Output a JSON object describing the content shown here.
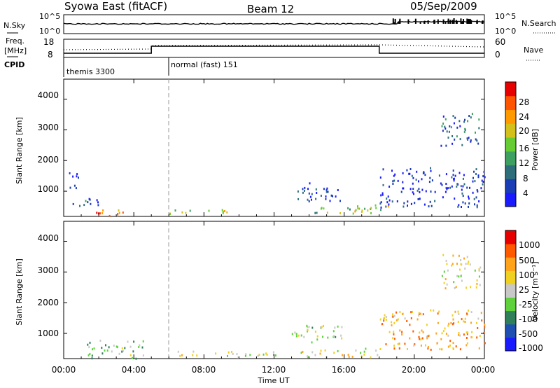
{
  "header": {
    "title": "Syowa East (fitACF)",
    "beam": "Beam 12",
    "date": "05/Sep/2009"
  },
  "params": {
    "nsky_label": "N.Sky",
    "nsky_ticks": [
      "10^5",
      "10^0"
    ],
    "nsearch_label": "N.Search",
    "nsearch_ticks": [
      "10^5",
      "10^0"
    ],
    "freq_label": "Freq.",
    "freq_unit": "[MHz]",
    "freq_ticks": [
      "18",
      "8"
    ],
    "nave_label": "Nave",
    "nave_ticks": [
      "60",
      "0"
    ],
    "cpid_label": "CPID",
    "cpid_segments": [
      {
        "name": "themis 3300",
        "start_h": 0,
        "end_h": 6
      },
      {
        "name": "normal (fast) 151",
        "start_h": 6,
        "end_h": 24
      }
    ]
  },
  "panels": {
    "ylabel": "Slant Range [km]",
    "yticks": [
      "4000",
      "3000",
      "2000",
      "1000"
    ],
    "xlabel": "Time UT",
    "xticks": [
      "00:00",
      "04:00",
      "08:00",
      "12:00",
      "16:00",
      "20:00",
      "00:00"
    ],
    "power_title": "Power [dB]",
    "power_ticks": [
      "28",
      "24",
      "20",
      "16",
      "12",
      "8",
      "4"
    ],
    "velocity_title": "Velocity [m s⁻¹]",
    "velocity_ticks": [
      "1000",
      "500",
      "100",
      "25",
      "-25",
      "-100",
      "-500",
      "-1000"
    ]
  },
  "colors": {
    "power_scale": [
      "#1a1aff",
      "#1a3cb4",
      "#2e6e7a",
      "#3ea060",
      "#66cc33",
      "#d4c01a",
      "#ff9900",
      "#ff5500",
      "#e60000"
    ],
    "velocity_scale": [
      "#1a1aff",
      "#1f4fb0",
      "#2e7f5a",
      "#5fd13c",
      "#c8c8c8",
      "#f0d020",
      "#ffa31a",
      "#ff5a00",
      "#e60000"
    ]
  },
  "chart_data": [
    {
      "type": "heatmap",
      "title": "Power [dB]",
      "xlabel": "Time UT",
      "ylabel": "Slant Range [km]",
      "xlim": [
        0,
        24
      ],
      "ylim": [
        180,
        4650
      ],
      "colorbar_range": [
        3,
        31
      ],
      "scatter_regions": [
        {
          "t": [
            0.2,
            0.8
          ],
          "r": [
            1000,
            1700
          ],
          "value": 6
        },
        {
          "t": [
            1.4,
            3.4
          ],
          "r": [
            200,
            500
          ],
          "value": 25
        },
        {
          "t": [
            0.5,
            2.0
          ],
          "r": [
            500,
            900
          ],
          "value": 9
        },
        {
          "t": [
            6.0,
            9.8
          ],
          "r": [
            250,
            420
          ],
          "value": 18
        },
        {
          "t": [
            13.0,
            15.8
          ],
          "r": [
            700,
            1300
          ],
          "value": 7
        },
        {
          "t": [
            13.5,
            17.5
          ],
          "r": [
            300,
            500
          ],
          "value": 15
        },
        {
          "t": [
            16.5,
            18.5
          ],
          "r": [
            300,
            600
          ],
          "value": 19
        },
        {
          "t": [
            18.0,
            24.0
          ],
          "r": [
            500,
            1800
          ],
          "value": 6
        },
        {
          "t": [
            21.5,
            23.8
          ],
          "r": [
            2500,
            3600
          ],
          "value": 10
        }
      ]
    },
    {
      "type": "heatmap",
      "title": "Velocity [m s⁻¹]",
      "xlabel": "Time UT",
      "ylabel": "Slant Range [km]",
      "xlim": [
        0,
        24
      ],
      "ylim": [
        180,
        4650
      ],
      "colorbar_range": [
        -1000,
        1000
      ],
      "scatter_regions": [
        {
          "t": [
            1.2,
            4.6
          ],
          "r": [
            200,
            800
          ],
          "value": -200
        },
        {
          "t": [
            6.0,
            12.5
          ],
          "r": [
            250,
            450
          ],
          "value": 60
        },
        {
          "t": [
            13.0,
            16.0
          ],
          "r": [
            700,
            1300
          ],
          "value": -30
        },
        {
          "t": [
            13.5,
            18.0
          ],
          "r": [
            250,
            550
          ],
          "value": 50
        },
        {
          "t": [
            18.0,
            24.0
          ],
          "r": [
            500,
            1800
          ],
          "value": 400
        },
        {
          "t": [
            21.5,
            23.8
          ],
          "r": [
            2500,
            3600
          ],
          "value": 150
        }
      ]
    }
  ]
}
